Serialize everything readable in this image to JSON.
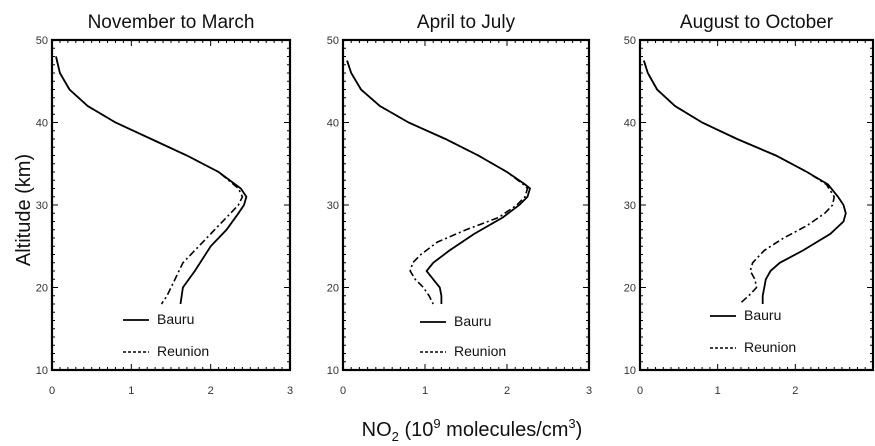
{
  "figure": {
    "ylabel": "Altitude (km)",
    "xlabel_main": "NO",
    "xlabel_sub": "2",
    "xlabel_rest_1": " (10",
    "xlabel_sup": "9",
    "xlabel_rest_2": " molecules/cm",
    "xlabel_sup2": "3",
    "xlabel_close": ")"
  },
  "chart_data": [
    {
      "type": "line",
      "title": "November to March",
      "xlim": [
        0,
        3
      ],
      "ylim": [
        10,
        50
      ],
      "xticks": [
        "0",
        "1",
        "2",
        "3"
      ],
      "yticks": [
        "10",
        "20",
        "30",
        "40",
        "50"
      ],
      "legend": [
        "Bauru",
        "Reunion"
      ],
      "legend_placement": "bottom-right",
      "series": [
        {
          "name": "Bauru",
          "style": "solid",
          "points": [
            [
              0.05,
              48
            ],
            [
              0.1,
              46
            ],
            [
              0.22,
              44
            ],
            [
              0.45,
              42
            ],
            [
              0.8,
              40
            ],
            [
              1.25,
              38
            ],
            [
              1.7,
              36
            ],
            [
              2.1,
              34
            ],
            [
              2.38,
              32
            ],
            [
              2.45,
              31
            ],
            [
              2.42,
              30
            ],
            [
              2.35,
              29
            ],
            [
              2.2,
              27
            ],
            [
              2.0,
              25
            ],
            [
              1.8,
              22
            ],
            [
              1.65,
              20
            ],
            [
              1.62,
              18
            ]
          ]
        },
        {
          "name": "Reunion",
          "style": "dashdot",
          "points": [
            [
              0.05,
              48
            ],
            [
              0.1,
              46
            ],
            [
              0.22,
              44
            ],
            [
              0.45,
              42
            ],
            [
              0.8,
              40
            ],
            [
              1.25,
              38
            ],
            [
              1.7,
              36
            ],
            [
              2.1,
              34
            ],
            [
              2.35,
              32
            ],
            [
              2.4,
              31
            ],
            [
              2.35,
              30
            ],
            [
              2.25,
              29
            ],
            [
              2.1,
              27.5
            ],
            [
              1.85,
              25
            ],
            [
              1.65,
              23
            ],
            [
              1.55,
              21
            ],
            [
              1.5,
              20
            ],
            [
              1.45,
              19
            ],
            [
              1.38,
              18
            ]
          ]
        }
      ]
    },
    {
      "type": "line",
      "title": "April to July",
      "xlim": [
        0,
        3
      ],
      "ylim": [
        10,
        50
      ],
      "xticks": [
        "0",
        "1",
        "2",
        "3"
      ],
      "yticks": [
        "10",
        "20",
        "30",
        "40",
        "50"
      ],
      "legend": [
        "Bauru",
        "Reunion"
      ],
      "legend_placement": "bottom-right",
      "series": [
        {
          "name": "Bauru",
          "style": "solid",
          "points": [
            [
              0.05,
              47.5
            ],
            [
              0.1,
              46
            ],
            [
              0.22,
              44
            ],
            [
              0.45,
              42
            ],
            [
              0.8,
              40
            ],
            [
              1.25,
              38
            ],
            [
              1.65,
              36
            ],
            [
              2.0,
              34
            ],
            [
              2.22,
              32.5
            ],
            [
              2.28,
              32
            ],
            [
              2.25,
              31
            ],
            [
              2.15,
              30
            ],
            [
              1.95,
              28.5
            ],
            [
              1.6,
              26.5
            ],
            [
              1.3,
              24.5
            ],
            [
              1.1,
              23
            ],
            [
              1.02,
              22
            ],
            [
              1.1,
              21
            ],
            [
              1.18,
              20
            ],
            [
              1.2,
              19
            ],
            [
              1.2,
              18
            ]
          ]
        },
        {
          "name": "Reunion",
          "style": "dashdot",
          "points": [
            [
              0.05,
              47.5
            ],
            [
              0.1,
              46
            ],
            [
              0.22,
              44
            ],
            [
              0.45,
              42
            ],
            [
              0.8,
              40
            ],
            [
              1.25,
              38
            ],
            [
              1.65,
              36
            ],
            [
              2.0,
              34
            ],
            [
              2.2,
              32.5
            ],
            [
              2.25,
              32
            ],
            [
              2.22,
              31
            ],
            [
              2.12,
              30
            ],
            [
              1.9,
              28.5
            ],
            [
              1.5,
              27
            ],
            [
              1.15,
              25.5
            ],
            [
              0.95,
              24
            ],
            [
              0.85,
              23
            ],
            [
              0.82,
              22
            ],
            [
              0.88,
              21
            ],
            [
              0.98,
              20
            ],
            [
              1.05,
              19
            ],
            [
              1.1,
              18
            ]
          ]
        }
      ]
    },
    {
      "type": "line",
      "title": "August to October",
      "xlim": [
        0,
        3
      ],
      "ylim": [
        10,
        50
      ],
      "xticks": [
        "0",
        "1",
        "2"
      ],
      "yticks": [
        "10",
        "20",
        "30",
        "40",
        "50"
      ],
      "legend": [
        "Bauru",
        "Reunion"
      ],
      "legend_placement": "bottom-right",
      "series": [
        {
          "name": "Bauru",
          "style": "solid",
          "points": [
            [
              0.05,
              47.5
            ],
            [
              0.1,
              46
            ],
            [
              0.22,
              44
            ],
            [
              0.45,
              42
            ],
            [
              0.8,
              40
            ],
            [
              1.25,
              38
            ],
            [
              1.75,
              36
            ],
            [
              2.15,
              34
            ],
            [
              2.42,
              32.5
            ],
            [
              2.55,
              31
            ],
            [
              2.62,
              30
            ],
            [
              2.65,
              29
            ],
            [
              2.62,
              28
            ],
            [
              2.45,
              26.5
            ],
            [
              2.1,
              24.5
            ],
            [
              1.8,
              23
            ],
            [
              1.68,
              22
            ],
            [
              1.62,
              21
            ],
            [
              1.6,
              20
            ],
            [
              1.58,
              19
            ],
            [
              1.58,
              18
            ]
          ]
        },
        {
          "name": "Reunion",
          "style": "dashdot",
          "points": [
            [
              0.05,
              47.5
            ],
            [
              0.1,
              46
            ],
            [
              0.22,
              44
            ],
            [
              0.45,
              42
            ],
            [
              0.8,
              40
            ],
            [
              1.25,
              38
            ],
            [
              1.75,
              36
            ],
            [
              2.15,
              34
            ],
            [
              2.4,
              32.5
            ],
            [
              2.5,
              31
            ],
            [
              2.48,
              30
            ],
            [
              2.38,
              29
            ],
            [
              2.15,
              27.5
            ],
            [
              1.85,
              26
            ],
            [
              1.6,
              24.5
            ],
            [
              1.45,
              23
            ],
            [
              1.42,
              22
            ],
            [
              1.48,
              21
            ],
            [
              1.5,
              20
            ],
            [
              1.4,
              19
            ],
            [
              1.28,
              18
            ]
          ]
        }
      ]
    }
  ]
}
